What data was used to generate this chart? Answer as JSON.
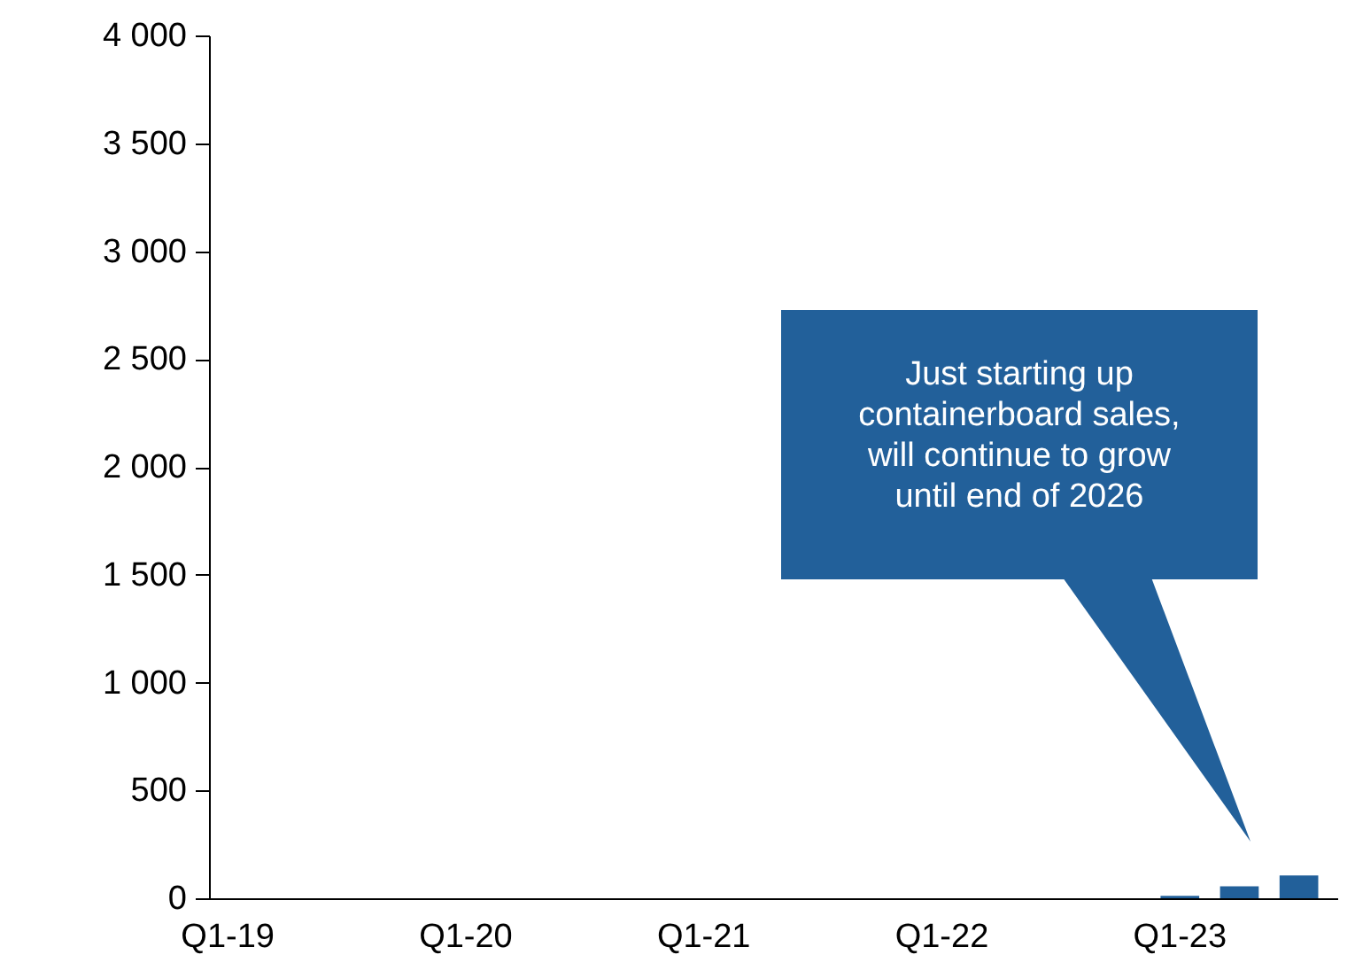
{
  "chart_data": {
    "type": "bar",
    "categories": [
      "Q1-19",
      null,
      null,
      null,
      "Q1-20",
      null,
      null,
      null,
      "Q1-21",
      null,
      null,
      null,
      "Q1-22",
      null,
      null,
      null,
      "Q1-23",
      null,
      null
    ],
    "values": [
      0,
      0,
      0,
      0,
      0,
      0,
      0,
      0,
      0,
      0,
      0,
      0,
      0,
      0,
      0,
      0,
      15,
      60,
      110
    ],
    "color": "#22609a",
    "ylim": [
      0,
      4000
    ],
    "yticks": [
      {
        "value": 0,
        "label": "0"
      },
      {
        "value": 500,
        "label": "500"
      },
      {
        "value": 1000,
        "label": "1 000"
      },
      {
        "value": 1500,
        "label": "1 500"
      },
      {
        "value": 2000,
        "label": "2 000"
      },
      {
        "value": 2500,
        "label": "2 500"
      },
      {
        "value": 3000,
        "label": "3 000"
      },
      {
        "value": 3500,
        "label": "3 500"
      },
      {
        "value": 4000,
        "label": "4 000"
      }
    ],
    "grid": false,
    "annotations": [
      "Just starting up\ncontainerboard sales,\nwill continue to grow\nuntil end of 2026"
    ]
  }
}
